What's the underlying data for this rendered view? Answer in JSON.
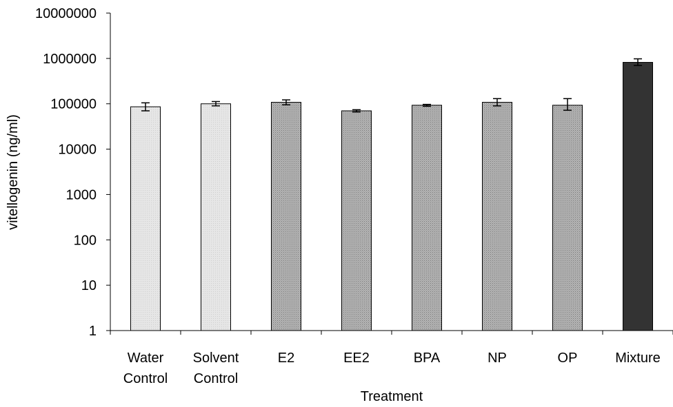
{
  "chart_data": {
    "type": "bar",
    "title": "",
    "xlabel": "Treatment",
    "ylabel": "vitellogenin (ng/ml)",
    "yscale": "log",
    "ylim": [
      1,
      10000000
    ],
    "yticks": [
      "1",
      "10",
      "100",
      "1000",
      "10000",
      "100000",
      "1000000",
      "10000000"
    ],
    "categories": [
      [
        "Water",
        "Control"
      ],
      [
        "Solvent",
        "Control"
      ],
      [
        "E2"
      ],
      [
        "EE2"
      ],
      [
        "BPA"
      ],
      [
        "NP"
      ],
      [
        "OP"
      ],
      [
        "Mixture"
      ]
    ],
    "values": [
      86000,
      100000,
      108000,
      70000,
      93000,
      108000,
      93000,
      820000
    ],
    "error_low": [
      70000,
      90000,
      95000,
      66000,
      88000,
      90000,
      72000,
      700000
    ],
    "error_high": [
      105000,
      112000,
      122000,
      74000,
      97000,
      130000,
      130000,
      980000
    ],
    "bar_colors": [
      "#e4e4e4",
      "#e4e4e4",
      "#a9a9a9",
      "#a9a9a9",
      "#a9a9a9",
      "#a9a9a9",
      "#a9a9a9",
      "#333333"
    ],
    "grid": false,
    "legend": "none"
  }
}
